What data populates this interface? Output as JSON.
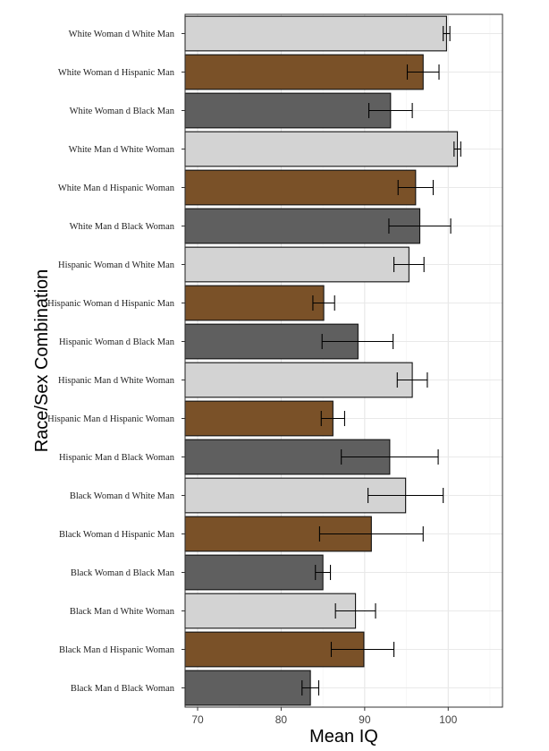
{
  "chart_data": {
    "type": "bar",
    "orientation": "horizontal",
    "xlabel": "Mean IQ",
    "ylabel": "Race/Sex Combination",
    "xlim": [
      68.5,
      106.5
    ],
    "xticks": [
      70,
      80,
      90,
      100
    ],
    "grid": true,
    "categories": [
      "White Woman d White Man",
      "White Woman d Hispanic Man",
      "White Woman d Black Man",
      "White Man d White Woman",
      "White Man d Hispanic Woman",
      "White Man d Black Woman",
      "Hispanic Woman d White Man",
      "Hispanic Woman d Hispanic Man",
      "Hispanic Woman d Black Man",
      "Hispanic Man d White Woman",
      "Hispanic Man d Hispanic Woman",
      "Hispanic Man d Black Woman",
      "Black Woman d White Man",
      "Black Woman d Hispanic Man",
      "Black Woman d Black Man",
      "Black Man d White Woman",
      "Black Man d Hispanic Woman",
      "Black Man d Black Woman"
    ],
    "values": [
      99.8,
      97.0,
      93.1,
      101.1,
      96.1,
      96.6,
      95.3,
      85.1,
      89.2,
      95.7,
      86.2,
      93.0,
      94.9,
      90.8,
      85.0,
      88.9,
      89.9,
      83.5
    ],
    "error_low": [
      99.4,
      95.1,
      90.5,
      100.7,
      94.0,
      92.9,
      93.5,
      83.8,
      84.9,
      93.9,
      84.8,
      87.2,
      90.4,
      84.6,
      84.1,
      86.5,
      86.0,
      82.5
    ],
    "error_high": [
      100.2,
      98.9,
      95.7,
      101.5,
      98.2,
      100.3,
      97.1,
      86.4,
      93.4,
      97.5,
      87.6,
      98.8,
      99.4,
      97.0,
      85.9,
      91.3,
      93.5,
      84.5
    ],
    "bar_colors": [
      "#d3d3d3",
      "#7a5128",
      "#5f5f5f",
      "#d3d3d3",
      "#7a5128",
      "#5f5f5f",
      "#d3d3d3",
      "#7a5128",
      "#5f5f5f",
      "#d3d3d3",
      "#7a5128",
      "#5f5f5f",
      "#d3d3d3",
      "#7a5128",
      "#5f5f5f",
      "#d3d3d3",
      "#7a5128",
      "#5f5f5f"
    ]
  }
}
